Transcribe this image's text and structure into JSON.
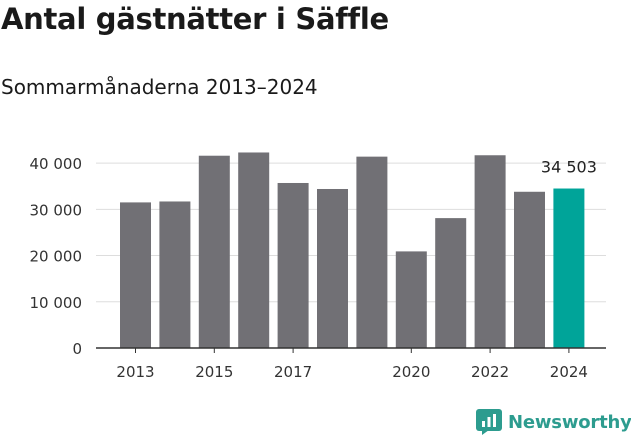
{
  "header": {
    "title": "Antal gästnätter i Säffle",
    "subtitle": "Sommarmånaderna 2013–2024"
  },
  "brand": {
    "name": "Newsworthy",
    "icon": "newsworthy-chart-logo-icon"
  },
  "colors": {
    "bar": "#717075",
    "highlight": "#00a499",
    "grid": "#dddddd",
    "brand": "#2d9c8f"
  },
  "chart_data": {
    "type": "bar",
    "categories": [
      "2013",
      "2014",
      "2015",
      "2016",
      "2017",
      "2018",
      "2019",
      "2020",
      "2021",
      "2022",
      "2023",
      "2024"
    ],
    "values": [
      31500,
      31700,
      41600,
      42300,
      35700,
      34400,
      41400,
      20900,
      28100,
      41700,
      33800,
      34503
    ],
    "x_tick_labels": [
      "2013",
      "2015",
      "2017",
      "2020",
      "2022",
      "2024"
    ],
    "y_ticks": [
      0,
      10000,
      20000,
      30000,
      40000
    ],
    "y_tick_labels": [
      "0",
      "10 000",
      "20 000",
      "30 000",
      "40 000"
    ],
    "ylim": [
      0,
      45000
    ],
    "highlight_index": 11,
    "annotation": "34 503",
    "grid": true
  }
}
